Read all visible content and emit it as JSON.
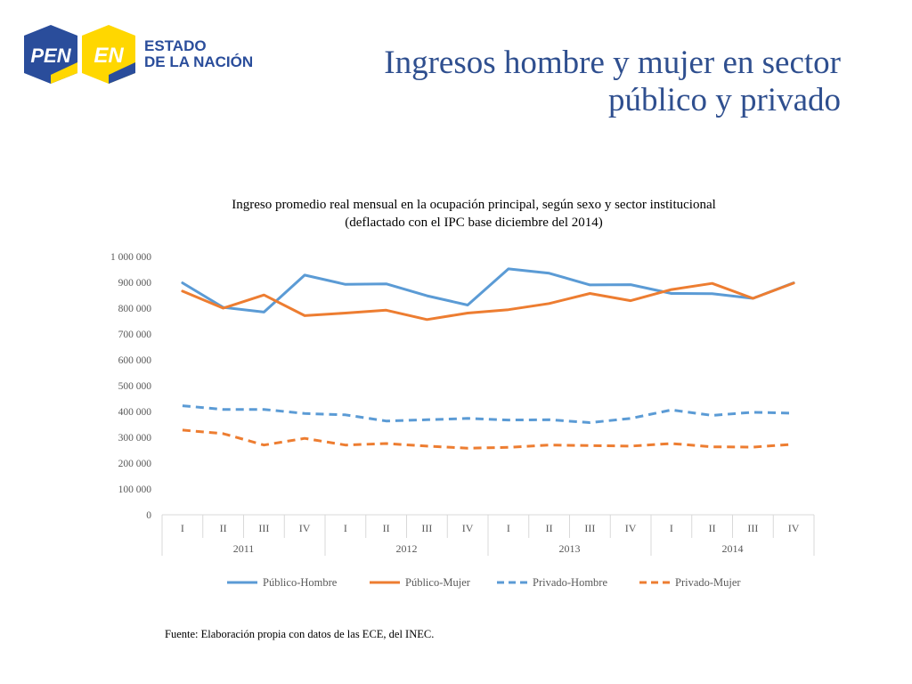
{
  "colors": {
    "title": "#2f4f8f",
    "publico_hombre": "#5b9bd5",
    "publico_mujer": "#ed7d31",
    "logo_blue": "#2a4d9b",
    "logo_yellow": "#ffd700"
  },
  "logo": {
    "pen": "PEN",
    "en": "EN",
    "line1": "ESTADO",
    "line2": "DE LA NACIÓN"
  },
  "title": {
    "line1": "Ingresos hombre y mujer en sector",
    "line2": "público y privado"
  },
  "source": "Fuente: Elaboración propia con datos de las ECE, del INEC.",
  "chart_data": {
    "type": "line",
    "title_line1": "Ingreso promedio real mensual en la ocupación principal, según sexo y sector institucional",
    "title_line2": "(deflactado con el IPC base diciembre del 2014)",
    "ylim": [
      0,
      1000000
    ],
    "yticks": [
      0,
      100000,
      200000,
      300000,
      400000,
      500000,
      600000,
      700000,
      800000,
      900000,
      1000000
    ],
    "ytick_labels": [
      "0",
      "100 000",
      "200 000",
      "300 000",
      "400 000",
      "500 000",
      "600 000",
      "700 000",
      "800 000",
      "900 000",
      "1 000 000"
    ],
    "quarters": [
      "I",
      "II",
      "III",
      "IV",
      "I",
      "II",
      "III",
      "IV",
      "I",
      "II",
      "III",
      "IV",
      "I",
      "II",
      "III",
      "IV"
    ],
    "years": [
      "2011",
      "2012",
      "2013",
      "2014"
    ],
    "legend_position": "bottom",
    "series": [
      {
        "name": "Público-Hombre",
        "color": "#5b9bd5",
        "dashed": false,
        "values": [
          898000,
          803000,
          785000,
          928000,
          892000,
          894000,
          848000,
          812000,
          952000,
          935000,
          890000,
          891000,
          857000,
          856000,
          838000,
          898000
        ]
      },
      {
        "name": "Público-Mujer",
        "color": "#ed7d31",
        "dashed": false,
        "values": [
          866000,
          800000,
          851000,
          771000,
          781000,
          792000,
          756000,
          781000,
          794000,
          818000,
          857000,
          829000,
          872000,
          896000,
          838000,
          897000
        ]
      },
      {
        "name": "Privado-Hombre",
        "color": "#5b9bd5",
        "dashed": true,
        "values": [
          422000,
          408000,
          408000,
          392000,
          387000,
          363000,
          368000,
          373000,
          367000,
          368000,
          357000,
          373000,
          406000,
          385000,
          397000,
          393000
        ]
      },
      {
        "name": "Privado-Mujer",
        "color": "#ed7d31",
        "dashed": true,
        "values": [
          328000,
          314000,
          270000,
          296000,
          270000,
          276000,
          266000,
          258000,
          261000,
          270000,
          268000,
          266000,
          276000,
          263000,
          262000,
          273000
        ]
      }
    ]
  }
}
